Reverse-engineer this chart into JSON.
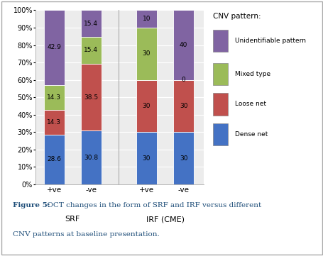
{
  "categories": [
    "+ve",
    "-ve",
    "+ve",
    "-ve"
  ],
  "group_labels": [
    "SRF",
    "IRF (CME)"
  ],
  "series_order": [
    "Dense net",
    "Loose net",
    "Mixed type",
    "Unidentifiable pattern"
  ],
  "series": {
    "Dense net": [
      28.6,
      30.8,
      30,
      30
    ],
    "Loose net": [
      14.3,
      38.5,
      30,
      30
    ],
    "Mixed type": [
      14.3,
      15.4,
      30,
      0
    ],
    "Unidentifiable pattern": [
      42.9,
      15.4,
      10,
      40
    ]
  },
  "bar_labels": {
    "Dense net": [
      "28.6",
      "30.8",
      "30",
      "30"
    ],
    "Loose net": [
      "14.3",
      "38.5",
      "30",
      "30"
    ],
    "Mixed type": [
      "14.3",
      "15.4",
      "30",
      "0"
    ],
    "Unidentifiable pattern": [
      "42.9",
      "15.4",
      "10",
      "40"
    ]
  },
  "colors": {
    "Dense net": "#4472C4",
    "Loose net": "#C0504D",
    "Mixed type": "#9BBB59",
    "Unidentifiable pattern": "#8064A2"
  },
  "legend_title": "CNV pattern:",
  "legend_order": [
    "Unidentifiable pattern",
    "Mixed type",
    "Loose net",
    "Dense net"
  ],
  "ylim": [
    0,
    100
  ],
  "yticks": [
    0,
    10,
    20,
    30,
    40,
    50,
    60,
    70,
    80,
    90,
    100
  ],
  "yticklabels": [
    "0%",
    "10%",
    "20%",
    "30%",
    "40%",
    "50%",
    "60%",
    "70%",
    "80%",
    "90%",
    "100%"
  ],
  "background_color": "#ffffff",
  "plot_bg_color": "#ececec",
  "caption_line1_bold": "Figure 5:",
  "caption_line1_rest": " OCT changes in the form of SRF and IRF versus different",
  "caption_line2": "CNV patterns at baseline presentation.",
  "caption_color": "#1f4e79",
  "bar_width": 0.55,
  "positions": [
    0.5,
    1.5,
    3.0,
    4.0
  ],
  "group_centers": [
    1.0,
    3.5
  ],
  "xlim": [
    0.0,
    4.55
  ]
}
